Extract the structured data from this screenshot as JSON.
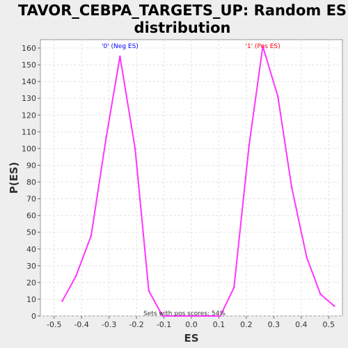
{
  "chart_data": {
    "type": "line",
    "title_line1": "TAVOR_CEBPA_TARGETS_UP: Random ES",
    "title_line2": "distribution",
    "xlabel": "ES",
    "ylabel": "P(ES)",
    "xlim": [
      -0.55,
      0.55
    ],
    "ylim": [
      0,
      165
    ],
    "xticks": [
      -0.5,
      -0.4,
      -0.3,
      -0.2,
      -0.1,
      0.0,
      0.1,
      0.2,
      0.3,
      0.4,
      0.5
    ],
    "xtick_labels": [
      "-0.5",
      "-0.4",
      "-0.3",
      "-0.2",
      "-0.1",
      "0.0",
      "0.1",
      "0.2",
      "0.3",
      "0.4",
      "0.5"
    ],
    "yticks": [
      0,
      10,
      20,
      30,
      40,
      50,
      60,
      70,
      80,
      90,
      100,
      110,
      120,
      130,
      140,
      150,
      160
    ],
    "grid": true,
    "line_color": "#ff33ff",
    "series": [
      {
        "x": [
          -0.47,
          -0.42,
          -0.365,
          -0.31,
          -0.26,
          -0.205,
          -0.155,
          -0.105,
          -0.05,
          0.0,
          0.05,
          0.105,
          0.155,
          0.21,
          0.26,
          0.315,
          0.365,
          0.42,
          0.47,
          0.52
        ],
        "y": [
          9,
          24,
          48,
          107,
          155,
          100,
          15,
          0,
          0,
          0,
          0,
          0,
          17,
          102,
          161,
          131,
          77,
          35,
          13,
          6
        ]
      }
    ],
    "annotations": [
      {
        "text": "'0' (Neg ES)",
        "x": -0.26,
        "color": "#0000ff"
      },
      {
        "text": "'1' (Pos ES)",
        "x": 0.26,
        "color": "#ff0000"
      }
    ],
    "footnote": "Sets with pos scores: 54%"
  }
}
